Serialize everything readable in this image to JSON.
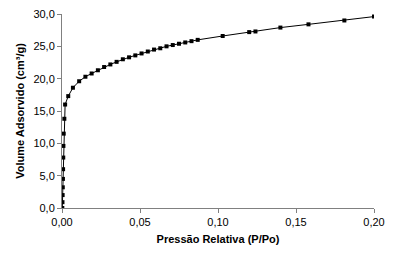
{
  "chart_data": {
    "type": "line",
    "x_label": "Pressão Relativa (P/Po)",
    "y_label": "Volume Adsorvido (cm³/g)",
    "x": [
      0.0002,
      0.0003,
      0.0004,
      0.0005,
      0.0006,
      0.0007,
      0.0008,
      0.0009,
      0.0011,
      0.0015,
      0.002,
      0.004,
      0.007,
      0.011,
      0.015,
      0.019,
      0.023,
      0.027,
      0.031,
      0.035,
      0.039,
      0.043,
      0.047,
      0.051,
      0.055,
      0.059,
      0.063,
      0.067,
      0.071,
      0.075,
      0.079,
      0.083,
      0.087,
      0.103,
      0.12,
      0.124,
      0.14,
      0.158,
      0.181,
      0.2
    ],
    "values": [
      0.0,
      0.9,
      2.0,
      3.2,
      4.5,
      6.0,
      7.8,
      9.6,
      11.5,
      13.8,
      16.0,
      17.3,
      18.6,
      19.6,
      20.3,
      20.8,
      21.3,
      21.8,
      22.2,
      22.6,
      23.0,
      23.3,
      23.6,
      23.9,
      24.2,
      24.5,
      24.7,
      25.0,
      25.2,
      25.4,
      25.6,
      25.8,
      26.0,
      26.6,
      27.2,
      27.3,
      27.9,
      28.4,
      29.0,
      29.6
    ],
    "color": "#000000",
    "marker": "square",
    "line_style": "solid",
    "grid": false,
    "xlim": [
      0,
      0.2
    ],
    "xticks": [
      {
        "value": 0,
        "label": "0,00"
      },
      {
        "value": 0.05,
        "label": "0,05"
      },
      {
        "value": 0.1,
        "label": "0,10"
      },
      {
        "value": 0.15,
        "label": "0,15"
      },
      {
        "value": 0.2,
        "label": "0,20"
      }
    ],
    "ylim": [
      0,
      30
    ],
    "yticks": [
      {
        "value": 0,
        "label": "0,0"
      },
      {
        "value": 5,
        "label": "5,0"
      },
      {
        "value": 10,
        "label": "10,0"
      },
      {
        "value": 15,
        "label": "15,0"
      },
      {
        "value": 20,
        "label": "20,0"
      },
      {
        "value": 25,
        "label": "25,0"
      },
      {
        "value": 30,
        "label": "30,0"
      }
    ]
  }
}
